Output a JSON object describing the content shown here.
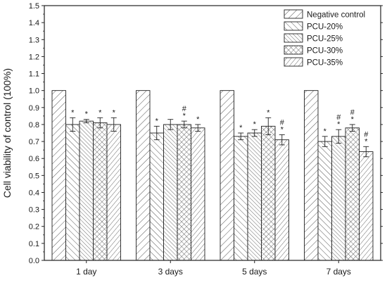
{
  "chart_data": {
    "type": "bar",
    "title": "",
    "xlabel": "",
    "ylabel": "Cell viability of control (100%)",
    "ylim": [
      0.0,
      1.5
    ],
    "yticks": [
      "0.0",
      "0.1",
      "0.2",
      "0.3",
      "0.4",
      "0.5",
      "0.6",
      "0.7",
      "0.8",
      "0.9",
      "1.0",
      "1.1",
      "1.2",
      "1.3",
      "1.4",
      "1.5"
    ],
    "categories": [
      "1 day",
      "3 days",
      "5 days",
      "7 days"
    ],
    "grid": false,
    "legend_position": "top-right",
    "series": [
      {
        "name": "Negative control",
        "pattern": "diag-up",
        "values": [
          1.0,
          1.0,
          1.0,
          1.0
        ],
        "errors": [
          0,
          0,
          0,
          0
        ],
        "marks": [
          "",
          "",
          "",
          ""
        ]
      },
      {
        "name": "PCU-20%",
        "pattern": "diag-down",
        "values": [
          0.8,
          0.75,
          0.73,
          0.7
        ],
        "errors": [
          0.04,
          0.04,
          0.02,
          0.03
        ],
        "marks": [
          "*",
          "*",
          "*",
          "*"
        ]
      },
      {
        "name": "PCU-25%",
        "pattern": "diag-down-dense",
        "values": [
          0.82,
          0.8,
          0.75,
          0.73
        ],
        "errors": [
          0.01,
          0.03,
          0.02,
          0.04
        ],
        "marks": [
          "*",
          "",
          "*",
          "#\n*"
        ]
      },
      {
        "name": "PCU-30%",
        "pattern": "crosshatch",
        "values": [
          0.81,
          0.8,
          0.79,
          0.78
        ],
        "errors": [
          0.03,
          0.02,
          0.05,
          0.02
        ],
        "marks": [
          "*",
          "#\n*",
          "*",
          "#\n*"
        ]
      },
      {
        "name": "PCU-35%",
        "pattern": "diag-up-wide",
        "values": [
          0.8,
          0.78,
          0.71,
          0.64
        ],
        "errors": [
          0.04,
          0.02,
          0.03,
          0.03
        ],
        "marks": [
          "*",
          "*",
          "#\n*",
          "#\n*"
        ]
      }
    ]
  }
}
